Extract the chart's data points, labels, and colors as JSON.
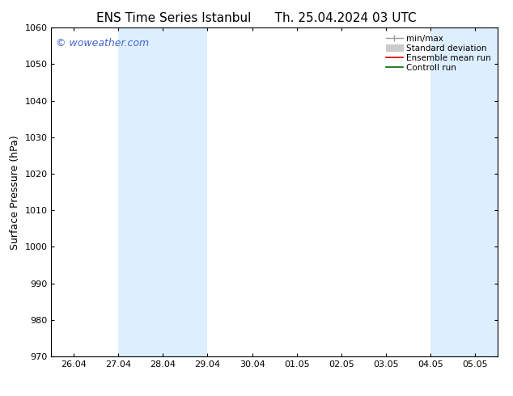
{
  "title_left": "ENS Time Series Istanbul",
  "title_right": "Th. 25.04.2024 03 UTC",
  "ylabel": "Surface Pressure (hPa)",
  "ylim": [
    970,
    1060
  ],
  "yticks": [
    970,
    980,
    990,
    1000,
    1010,
    1020,
    1030,
    1040,
    1050,
    1060
  ],
  "xtick_labels": [
    "26.04",
    "27.04",
    "28.04",
    "29.04",
    "30.04",
    "01.05",
    "02.05",
    "03.05",
    "04.05",
    "05.05"
  ],
  "xtick_positions": [
    0,
    1,
    2,
    3,
    4,
    5,
    6,
    7,
    8,
    9
  ],
  "xlim": [
    -0.5,
    9.5
  ],
  "shaded_bands": [
    {
      "x_start": 1.0,
      "x_end": 3.0
    },
    {
      "x_start": 8.0,
      "x_end": 9.5
    }
  ],
  "shaded_color": "#ddeeff",
  "watermark": "© woweather.com",
  "watermark_color": "#4466cc",
  "bg_color": "#ffffff",
  "legend_fontsize": 7.5,
  "tick_fontsize": 8,
  "label_fontsize": 9,
  "title_fontsize": 11
}
